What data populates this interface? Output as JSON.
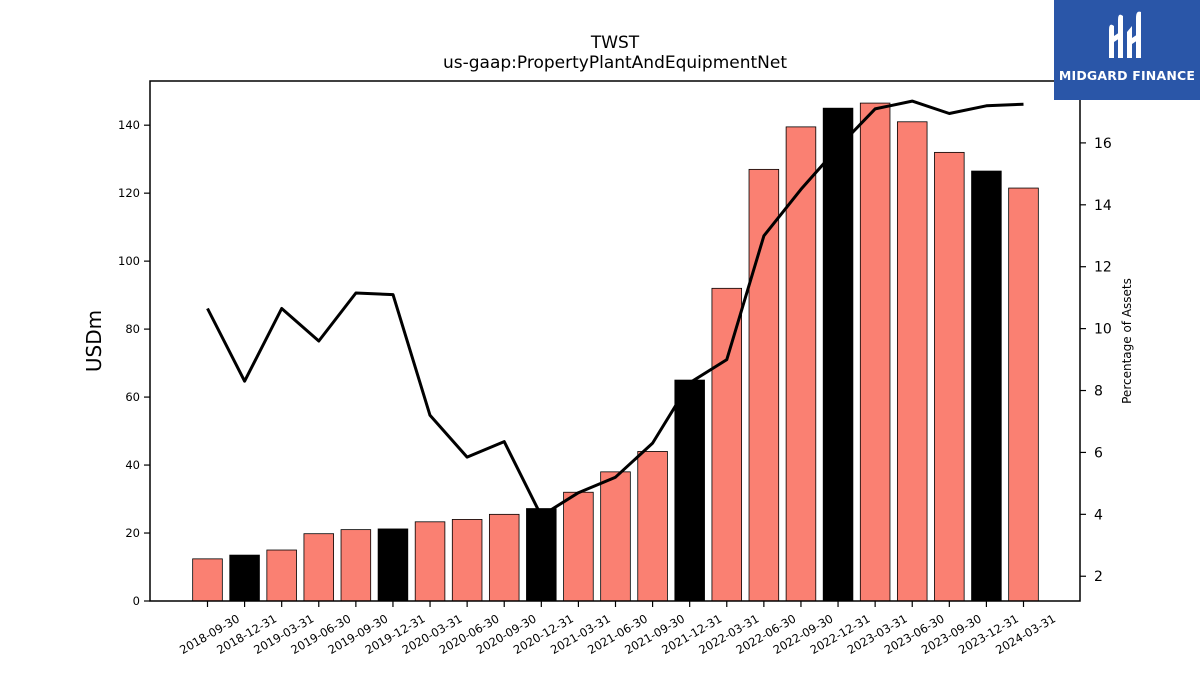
{
  "title": "TWST",
  "subtitle": "us-gaap:PropertyPlantAndEquipmentNet",
  "logo": {
    "text": "MIDGARD FINANCE",
    "background": "#2a56a8"
  },
  "chart_data": {
    "type": "bar",
    "title": "TWST",
    "subtitle": "us-gaap:PropertyPlantAndEquipmentNet",
    "ylabel": "USDm",
    "y2label": "Percentage of Assets",
    "ylim": [
      0,
      153
    ],
    "y2lim": [
      1.2,
      18.0
    ],
    "yticks": [
      0,
      20,
      40,
      60,
      80,
      100,
      120,
      140
    ],
    "y2ticks": [
      2,
      4,
      6,
      8,
      10,
      12,
      14,
      16
    ],
    "grid": false,
    "categories": [
      "2018-09-30",
      "2018-12-31",
      "2019-03-31",
      "2019-06-30",
      "2019-09-30",
      "2019-12-31",
      "2020-03-31",
      "2020-06-30",
      "2020-09-30",
      "2020-12-31",
      "2021-03-31",
      "2021-06-30",
      "2021-09-30",
      "2021-12-31",
      "2022-03-31",
      "2022-06-30",
      "2022-09-30",
      "2022-12-31",
      "2023-03-31",
      "2023-06-30",
      "2023-09-30",
      "2023-12-31",
      "2024-03-31"
    ],
    "series": [
      {
        "type": "bar",
        "axis": "left",
        "values": [
          12.4,
          13.5,
          15.0,
          19.8,
          21.0,
          21.2,
          23.3,
          24.0,
          25.5,
          27.2,
          32.0,
          38.0,
          44.0,
          65.0,
          92.0,
          127.0,
          139.5,
          145.0,
          146.5,
          141.0,
          132.0,
          126.5,
          121.5
        ],
        "colors": [
          "#fa8072",
          "#000000",
          "#fa8072",
          "#fa8072",
          "#fa8072",
          "#000000",
          "#fa8072",
          "#fa8072",
          "#fa8072",
          "#000000",
          "#fa8072",
          "#fa8072",
          "#fa8072",
          "#000000",
          "#fa8072",
          "#fa8072",
          "#fa8072",
          "#000000",
          "#fa8072",
          "#fa8072",
          "#fa8072",
          "#000000",
          "#fa8072"
        ]
      },
      {
        "type": "line",
        "axis": "right",
        "color": "#000000",
        "values": [
          10.65,
          8.3,
          10.65,
          9.6,
          11.15,
          11.1,
          7.2,
          5.85,
          6.35,
          3.95,
          4.7,
          5.2,
          6.3,
          8.25,
          9.0,
          13.0,
          14.5,
          15.85,
          17.1,
          17.35,
          16.95,
          17.2,
          17.25
        ]
      }
    ]
  }
}
